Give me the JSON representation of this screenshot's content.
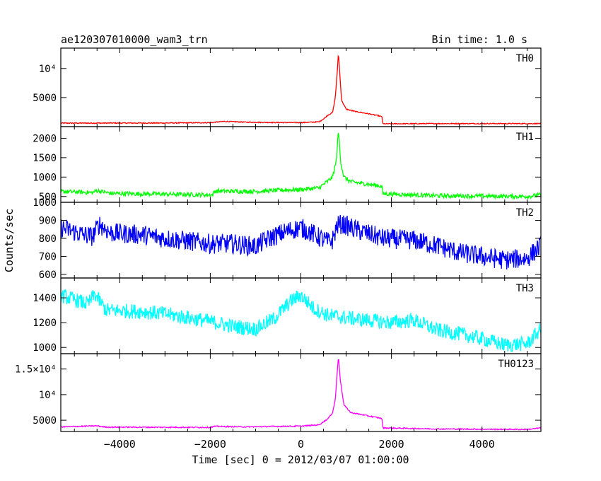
{
  "header": {
    "title": "ae120307010000_wam3_trn",
    "bin_time": "Bin time: 1.0 s"
  },
  "axes": {
    "xlabel": "Time [sec] 0 = 2012/03/07 01:00:00",
    "ylabel": "Counts/sec"
  },
  "chart_data": {
    "type": "line",
    "title": "ae120307010000_wam3_trn",
    "xlabel": "Time [sec] 0 = 2012/03/07 01:00:00",
    "ylabel": "Counts/sec",
    "xlim": [
      -5300,
      5300
    ],
    "x_ticks": [
      -4000,
      -2000,
      0,
      2000,
      4000
    ],
    "x_tick_labels": [
      "−4000",
      "−2000",
      "0",
      "2000",
      "4000"
    ],
    "panels": [
      {
        "name": "TH0",
        "color": "#ff0000",
        "ylim": [
          0,
          13500
        ],
        "y_ticks": [
          5000,
          10000
        ],
        "y_tick_labels": [
          "5000",
          "10⁴"
        ],
        "noise": 80,
        "points": [
          [
            -5300,
            600
          ],
          [
            -3000,
            620
          ],
          [
            -2000,
            680
          ],
          [
            -1700,
            900
          ],
          [
            -1200,
            760
          ],
          [
            -500,
            700
          ],
          [
            0,
            690
          ],
          [
            400,
            820
          ],
          [
            500,
            1300
          ],
          [
            600,
            2000
          ],
          [
            700,
            2400
          ],
          [
            760,
            5000
          ],
          [
            800,
            9000
          ],
          [
            830,
            12800
          ],
          [
            860,
            9000
          ],
          [
            900,
            4500
          ],
          [
            1000,
            3000
          ],
          [
            1200,
            2600
          ],
          [
            1500,
            2200
          ],
          [
            1700,
            1900
          ],
          [
            1790,
            1700
          ],
          [
            1810,
            480
          ],
          [
            3000,
            520
          ],
          [
            5300,
            520
          ]
        ]
      },
      {
        "name": "TH1",
        "color": "#00ff00",
        "ylim": [
          350,
          2300
        ],
        "y_ticks": [
          500,
          1000,
          1500,
          2000
        ],
        "y_tick_labels": [
          "500",
          "1000",
          "1500",
          "2000"
        ],
        "noise": 55,
        "points": [
          [
            -5300,
            630
          ],
          [
            -4600,
            600
          ],
          [
            -4500,
            650
          ],
          [
            -4200,
            580
          ],
          [
            -3000,
            560
          ],
          [
            -1950,
            540
          ],
          [
            -1900,
            640
          ],
          [
            -1000,
            630
          ],
          [
            -500,
            660
          ],
          [
            0,
            680
          ],
          [
            400,
            720
          ],
          [
            600,
            900
          ],
          [
            700,
            1000
          ],
          [
            780,
            1400
          ],
          [
            830,
            2200
          ],
          [
            880,
            1400
          ],
          [
            950,
            1000
          ],
          [
            1100,
            880
          ],
          [
            1400,
            830
          ],
          [
            1700,
            780
          ],
          [
            1790,
            760
          ],
          [
            1810,
            570
          ],
          [
            3000,
            520
          ],
          [
            5000,
            500
          ],
          [
            5300,
            540
          ]
        ]
      },
      {
        "name": "TH2",
        "color": "#0000ff",
        "ylim": [
          580,
          1000
        ],
        "y_ticks": [
          600,
          700,
          800,
          900,
          1000
        ],
        "y_tick_labels": [
          "600",
          "700",
          "800",
          "900",
          "1000"
        ],
        "noise": 55,
        "points": [
          [
            -5300,
            860
          ],
          [
            -4800,
            820
          ],
          [
            -4600,
            810
          ],
          [
            -4450,
            880
          ],
          [
            -4200,
            830
          ],
          [
            -3500,
            820
          ],
          [
            -3000,
            800
          ],
          [
            -2000,
            770
          ],
          [
            -1500,
            770
          ],
          [
            -1000,
            755
          ],
          [
            -700,
            800
          ],
          [
            -300,
            840
          ],
          [
            0,
            860
          ],
          [
            300,
            820
          ],
          [
            600,
            780
          ],
          [
            700,
            790
          ],
          [
            800,
            870
          ],
          [
            900,
            880
          ],
          [
            1200,
            850
          ],
          [
            1800,
            800
          ],
          [
            2500,
            790
          ],
          [
            3000,
            760
          ],
          [
            3500,
            720
          ],
          [
            4000,
            700
          ],
          [
            4500,
            680
          ],
          [
            5000,
            690
          ],
          [
            5300,
            760
          ]
        ]
      },
      {
        "name": "TH3",
        "color": "#00ffff",
        "ylim": [
          950,
          1560
        ],
        "y_ticks": [
          1000,
          1200,
          1400
        ],
        "y_tick_labels": [
          "1000",
          "1200",
          "1400"
        ],
        "noise": 60,
        "points": [
          [
            -5300,
            1420
          ],
          [
            -4700,
            1350
          ],
          [
            -4550,
            1430
          ],
          [
            -4300,
            1300
          ],
          [
            -3500,
            1290
          ],
          [
            -3000,
            1270
          ],
          [
            -2000,
            1210
          ],
          [
            -1500,
            1170
          ],
          [
            -1000,
            1150
          ],
          [
            -600,
            1230
          ],
          [
            -200,
            1380
          ],
          [
            0,
            1420
          ],
          [
            300,
            1310
          ],
          [
            600,
            1260
          ],
          [
            1200,
            1230
          ],
          [
            2000,
            1200
          ],
          [
            2500,
            1220
          ],
          [
            3000,
            1140
          ],
          [
            3500,
            1110
          ],
          [
            4000,
            1070
          ],
          [
            4500,
            1020
          ],
          [
            5000,
            1030
          ],
          [
            5300,
            1150
          ]
        ]
      },
      {
        "name": "TH0123",
        "color": "#ff00ff",
        "ylim": [
          2800,
          18000
        ],
        "y_ticks": [
          5000,
          10000,
          15000
        ],
        "y_tick_labels": [
          "5000",
          "10⁴",
          "1.5×10⁴"
        ],
        "noise": 110,
        "points": [
          [
            -5300,
            3700
          ],
          [
            -4500,
            3900
          ],
          [
            -4300,
            3650
          ],
          [
            -2000,
            3600
          ],
          [
            -1900,
            3800
          ],
          [
            -1200,
            3700
          ],
          [
            -500,
            3800
          ],
          [
            0,
            3850
          ],
          [
            400,
            4100
          ],
          [
            500,
            4700
          ],
          [
            600,
            5300
          ],
          [
            700,
            6500
          ],
          [
            760,
            9000
          ],
          [
            800,
            14000
          ],
          [
            830,
            17500
          ],
          [
            870,
            13000
          ],
          [
            950,
            8000
          ],
          [
            1100,
            6500
          ],
          [
            1400,
            6000
          ],
          [
            1700,
            5500
          ],
          [
            1790,
            5300
          ],
          [
            1810,
            3500
          ],
          [
            3000,
            3300
          ],
          [
            5000,
            3200
          ],
          [
            5300,
            3500
          ]
        ]
      }
    ]
  }
}
